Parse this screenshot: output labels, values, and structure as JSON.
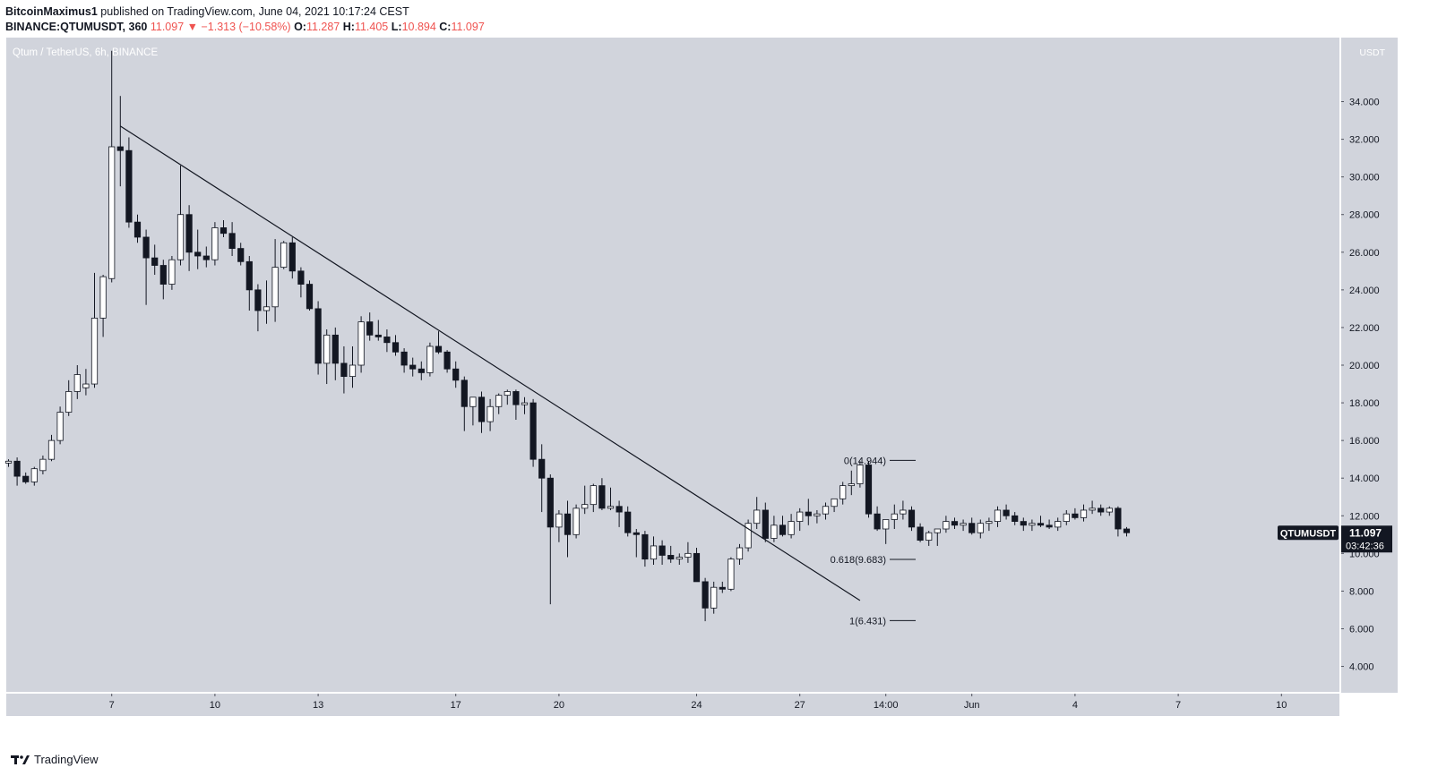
{
  "header": {
    "author": "BitcoinMaximus1",
    "published": "published on TradingView.com, June 04, 2021 10:17:24 CEST",
    "symbol": "BINANCE:QTUMUSDT, 360",
    "last": "11.097",
    "change_arrow": "▼",
    "change": "−1.313 (−10.58%)",
    "o_label": "O:",
    "o": "11.287",
    "h_label": "H:",
    "h": "11.405",
    "l_label": "L:",
    "l": "10.894",
    "c_label": "C:",
    "c": "11.097"
  },
  "chart_title": "Qtum / TetherUS, 6h, BINANCE",
  "price_label": {
    "symbol": "QTUMUSDT",
    "price": "11.097",
    "countdown": "03:42:36"
  },
  "footer": {
    "brand": "TradingView"
  },
  "colors": {
    "background": "#d1d4dc",
    "up_body": "#ffffff",
    "down_body": "#131722",
    "wick": "#131722",
    "label_bg": "#131722"
  },
  "chart_data": {
    "type": "candlestick",
    "title": "Qtum / TetherUS, 6h, BINANCE",
    "ylabel": "USDT",
    "ylim": [
      2.6,
      37.4
    ],
    "y_ticks": [
      "4.000",
      "6.000",
      "8.000",
      "10.000",
      "12.000",
      "14.000",
      "16.000",
      "18.000",
      "20.000",
      "22.000",
      "24.000",
      "26.000",
      "28.000",
      "30.000",
      "32.000",
      "34.000"
    ],
    "x_ticks": [
      "7",
      "10",
      "13",
      "17",
      "20",
      "24",
      "27",
      "14:00",
      "Jun",
      "4",
      "7",
      "10"
    ],
    "x_ticks_index": [
      12,
      24,
      36,
      52,
      64,
      80,
      92,
      102,
      112,
      124,
      136,
      148
    ],
    "candles": [
      [
        14.8,
        15.0,
        14.6,
        14.9
      ],
      [
        14.9,
        15.1,
        13.6,
        14.1
      ],
      [
        14.1,
        14.3,
        13.7,
        13.8
      ],
      [
        13.8,
        14.6,
        13.6,
        14.5
      ],
      [
        14.4,
        15.2,
        14.2,
        15.0
      ],
      [
        15.0,
        16.3,
        14.9,
        16.0
      ],
      [
        16.0,
        17.8,
        15.8,
        17.5
      ],
      [
        17.5,
        19.2,
        17.3,
        18.6
      ],
      [
        18.6,
        20.0,
        18.2,
        19.5
      ],
      [
        18.8,
        19.8,
        18.4,
        19.0
      ],
      [
        19.0,
        24.9,
        18.8,
        22.5
      ],
      [
        22.5,
        24.8,
        21.5,
        24.7
      ],
      [
        24.6,
        36.7,
        24.4,
        31.6
      ],
      [
        31.6,
        34.3,
        29.5,
        31.4
      ],
      [
        31.4,
        32.1,
        27.3,
        27.6
      ],
      [
        27.6,
        28.0,
        26.5,
        26.8
      ],
      [
        26.8,
        27.2,
        23.2,
        25.7
      ],
      [
        25.7,
        26.4,
        24.8,
        25.3
      ],
      [
        25.3,
        25.6,
        23.5,
        24.3
      ],
      [
        24.3,
        25.8,
        24.0,
        25.6
      ],
      [
        25.6,
        30.6,
        25.3,
        28.0
      ],
      [
        28.0,
        28.5,
        25.0,
        26.0
      ],
      [
        26.0,
        27.2,
        25.1,
        25.8
      ],
      [
        25.8,
        26.3,
        25.2,
        25.6
      ],
      [
        25.6,
        27.6,
        25.3,
        27.3
      ],
      [
        27.3,
        27.7,
        26.8,
        27.0
      ],
      [
        27.0,
        27.6,
        25.8,
        26.2
      ],
      [
        26.2,
        26.5,
        25.3,
        25.5
      ],
      [
        25.5,
        25.8,
        22.9,
        24.0
      ],
      [
        24.0,
        24.3,
        21.8,
        22.9
      ],
      [
        22.9,
        24.5,
        22.2,
        23.1
      ],
      [
        23.1,
        26.7,
        22.3,
        25.2
      ],
      [
        25.2,
        26.6,
        25.1,
        26.5
      ],
      [
        26.5,
        26.8,
        24.6,
        25.0
      ],
      [
        25.0,
        25.2,
        23.6,
        24.3
      ],
      [
        24.3,
        24.5,
        22.9,
        23.0
      ],
      [
        23.0,
        23.4,
        19.5,
        20.1
      ],
      [
        20.1,
        21.9,
        19.0,
        21.6
      ],
      [
        21.6,
        22.0,
        19.2,
        20.1
      ],
      [
        20.1,
        21.0,
        18.5,
        19.4
      ],
      [
        19.4,
        21.0,
        18.8,
        20.0
      ],
      [
        20.0,
        22.6,
        19.6,
        22.3
      ],
      [
        22.3,
        22.8,
        21.3,
        21.6
      ],
      [
        21.6,
        22.4,
        21.3,
        21.5
      ],
      [
        21.5,
        21.9,
        20.7,
        21.2
      ],
      [
        21.2,
        21.6,
        20.5,
        20.7
      ],
      [
        20.7,
        20.9,
        19.6,
        20.0
      ],
      [
        20.0,
        20.4,
        19.4,
        19.8
      ],
      [
        19.8,
        20.2,
        19.2,
        19.6
      ],
      [
        19.6,
        21.2,
        19.4,
        21.0
      ],
      [
        21.0,
        21.8,
        20.6,
        20.7
      ],
      [
        20.7,
        20.8,
        19.6,
        19.8
      ],
      [
        19.8,
        20.2,
        18.8,
        19.2
      ],
      [
        19.2,
        19.4,
        16.5,
        17.8
      ],
      [
        17.8,
        18.3,
        16.8,
        18.3
      ],
      [
        18.3,
        18.6,
        16.4,
        17.0
      ],
      [
        17.0,
        18.2,
        16.5,
        17.8
      ],
      [
        17.8,
        18.5,
        17.4,
        18.4
      ],
      [
        18.4,
        18.7,
        17.9,
        18.6
      ],
      [
        18.6,
        18.7,
        17.1,
        17.9
      ],
      [
        17.9,
        18.3,
        17.4,
        18.0
      ],
      [
        18.0,
        18.2,
        14.6,
        15.0
      ],
      [
        15.0,
        15.8,
        12.2,
        14.0
      ],
      [
        14.0,
        14.2,
        7.3,
        11.4
      ],
      [
        11.4,
        12.3,
        10.6,
        12.1
      ],
      [
        12.1,
        12.8,
        9.8,
        11.0
      ],
      [
        11.0,
        12.6,
        10.8,
        12.4
      ],
      [
        12.4,
        13.6,
        12.1,
        12.6
      ],
      [
        12.6,
        13.7,
        12.2,
        13.6
      ],
      [
        13.6,
        14.0,
        12.3,
        12.4
      ],
      [
        12.4,
        13.5,
        12.3,
        12.5
      ],
      [
        12.5,
        12.8,
        11.4,
        12.2
      ],
      [
        12.2,
        12.5,
        10.9,
        11.1
      ],
      [
        11.1,
        11.3,
        9.8,
        11.0
      ],
      [
        11.0,
        11.2,
        9.3,
        9.7
      ],
      [
        9.7,
        10.9,
        9.4,
        10.4
      ],
      [
        10.4,
        10.7,
        9.4,
        9.9
      ],
      [
        9.9,
        10.4,
        9.5,
        9.7
      ],
      [
        9.7,
        10.0,
        9.4,
        9.8
      ],
      [
        9.8,
        10.6,
        9.5,
        10.0
      ],
      [
        10.0,
        10.3,
        8.5,
        8.5
      ],
      [
        8.5,
        8.7,
        6.4,
        7.1
      ],
      [
        7.1,
        8.5,
        6.8,
        8.2
      ],
      [
        8.2,
        8.5,
        7.9,
        8.1
      ],
      [
        8.1,
        9.8,
        8.0,
        9.7
      ],
      [
        9.7,
        10.5,
        9.4,
        10.3
      ],
      [
        10.3,
        11.8,
        10.1,
        11.6
      ],
      [
        11.6,
        13.0,
        11.3,
        12.3
      ],
      [
        12.3,
        12.7,
        10.6,
        10.8
      ],
      [
        10.8,
        12.0,
        10.6,
        11.5
      ],
      [
        11.5,
        12.0,
        10.9,
        11.0
      ],
      [
        11.0,
        12.1,
        10.8,
        11.7
      ],
      [
        11.7,
        12.4,
        11.2,
        12.2
      ],
      [
        12.2,
        12.9,
        11.5,
        12.0
      ],
      [
        12.0,
        12.3,
        11.6,
        12.1
      ],
      [
        12.1,
        12.7,
        11.8,
        12.5
      ],
      [
        12.5,
        12.8,
        12.2,
        12.9
      ],
      [
        12.9,
        13.8,
        12.6,
        13.6
      ],
      [
        13.6,
        14.4,
        13.1,
        13.7
      ],
      [
        13.7,
        14.9,
        13.5,
        14.7
      ],
      [
        14.7,
        14.9,
        11.9,
        12.1
      ],
      [
        12.1,
        12.5,
        11.2,
        11.3
      ],
      [
        11.3,
        11.5,
        10.5,
        11.8
      ],
      [
        11.8,
        12.6,
        11.3,
        12.1
      ],
      [
        12.1,
        12.8,
        11.8,
        12.3
      ],
      [
        12.3,
        12.5,
        11.2,
        11.4
      ],
      [
        11.4,
        11.6,
        10.6,
        10.7
      ],
      [
        10.7,
        11.2,
        10.4,
        11.1
      ],
      [
        11.1,
        11.3,
        10.4,
        11.3
      ],
      [
        11.3,
        12.0,
        11.1,
        11.7
      ],
      [
        11.7,
        11.9,
        11.3,
        11.5
      ],
      [
        11.5,
        11.8,
        11.2,
        11.6
      ],
      [
        11.6,
        11.9,
        11.0,
        11.1
      ],
      [
        11.1,
        11.8,
        10.8,
        11.6
      ],
      [
        11.6,
        11.9,
        11.2,
        11.7
      ],
      [
        11.7,
        12.5,
        11.4,
        12.3
      ],
      [
        12.3,
        12.6,
        11.8,
        12.0
      ],
      [
        12.0,
        12.2,
        11.5,
        11.7
      ],
      [
        11.7,
        11.9,
        11.2,
        11.5
      ],
      [
        11.5,
        11.8,
        11.2,
        11.6
      ],
      [
        11.6,
        12.0,
        11.4,
        11.5
      ],
      [
        11.5,
        11.8,
        11.3,
        11.4
      ],
      [
        11.4,
        11.9,
        11.2,
        11.7
      ],
      [
        11.7,
        12.3,
        11.5,
        12.1
      ],
      [
        12.1,
        12.4,
        11.8,
        11.9
      ],
      [
        11.9,
        12.6,
        11.7,
        12.3
      ],
      [
        12.3,
        12.8,
        12.1,
        12.4
      ],
      [
        12.4,
        12.6,
        12.0,
        12.2
      ],
      [
        12.2,
        12.5,
        12.0,
        12.4
      ],
      [
        12.4,
        12.5,
        10.9,
        11.3
      ],
      [
        11.3,
        11.4,
        10.9,
        11.1
      ]
    ],
    "trendline": {
      "from": {
        "index": 13,
        "price": 32.7
      },
      "to": {
        "index": 99,
        "price": 7.5
      }
    },
    "fib_levels": [
      {
        "label": "0(14.944)",
        "price": 14.944
      },
      {
        "label": "0.618(9.683)",
        "price": 9.683
      },
      {
        "label": "1(6.431)",
        "price": 6.431
      }
    ],
    "last_price": 11.097
  }
}
